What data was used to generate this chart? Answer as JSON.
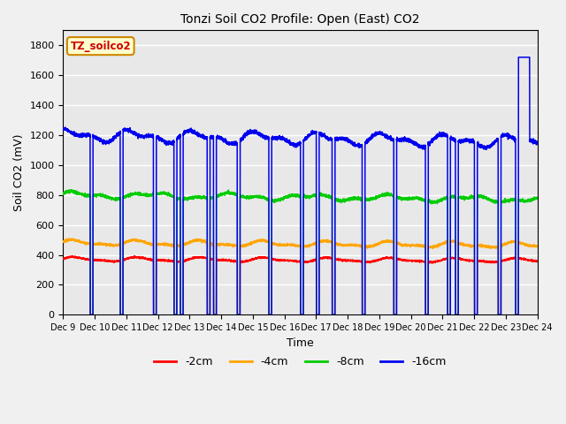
{
  "title": "Tonzi Soil CO2 Profile: Open (East) CO2",
  "xlabel": "Time",
  "ylabel": "Soil CO2 (mV)",
  "ylim": [
    0,
    1900
  ],
  "yticks": [
    0,
    200,
    400,
    600,
    800,
    1000,
    1200,
    1400,
    1600,
    1800
  ],
  "legend_label": "TZ_soilco2",
  "colors": {
    "-2cm": "#ff0000",
    "-4cm": "#ffa500",
    "-8cm": "#00cc00",
    "-16cm": "#0000ee"
  },
  "x_tick_labels": [
    "Dec 9",
    "Dec 10",
    "Dec 11",
    "Dec 12",
    "Dec 13",
    "Dec 14",
    "Dec 15",
    "Dec 16",
    "Dec 17",
    "Dec 18",
    "Dec 19",
    "Dec 20",
    "Dec 21",
    "Dec 22",
    "Dec 23",
    "Dec 24"
  ],
  "figsize": [
    6.4,
    4.8
  ],
  "dpi": 100,
  "total_days": 15,
  "fig_bg": "#f0f0f0",
  "ax_bg": "#e8e8e8",
  "grid_color": "#ffffff"
}
